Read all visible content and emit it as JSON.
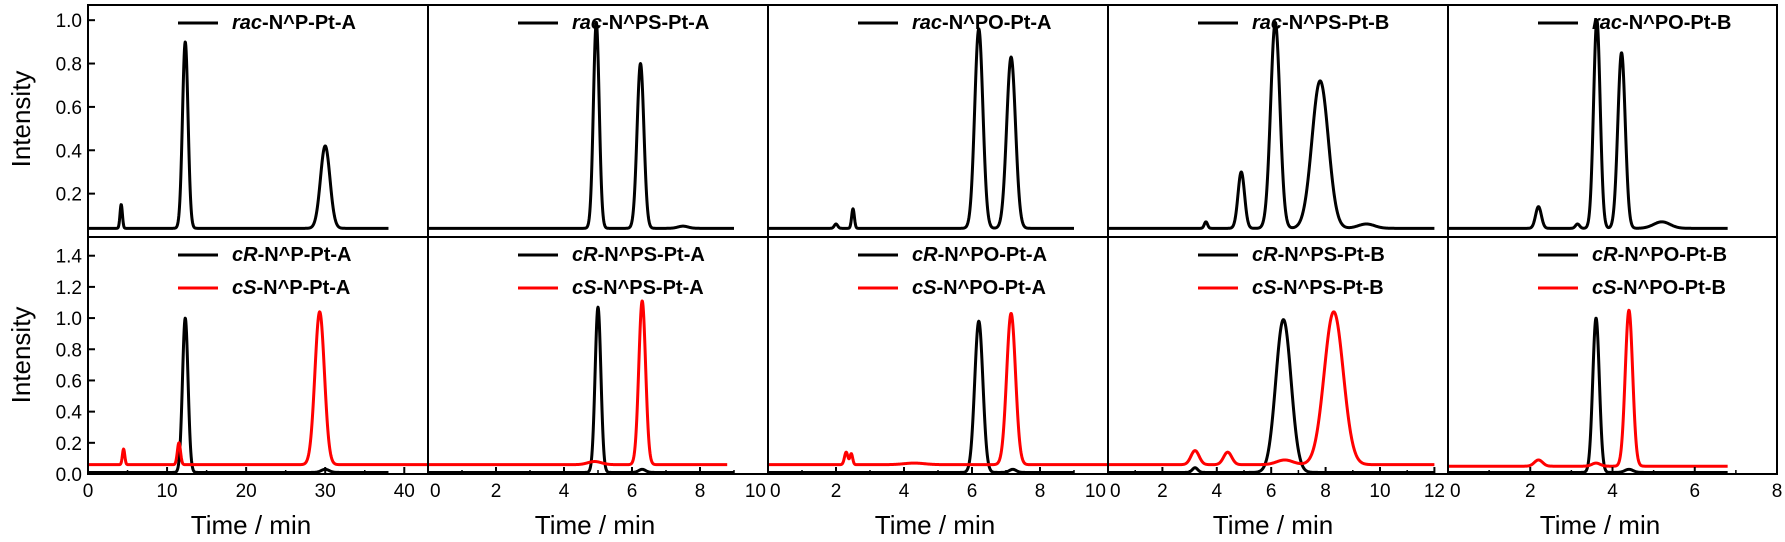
{
  "figure": {
    "ylabel": "Intensity",
    "xlabel": "Time / min"
  },
  "chart_data": [
    {
      "type": "line",
      "row": 0,
      "col": 0,
      "xlim": [
        0,
        43
      ],
      "ylim": [
        0,
        1.07
      ],
      "xticks": [],
      "yticks": [
        0.2,
        0.4,
        0.6,
        0.8,
        1.0
      ],
      "series": [
        {
          "name_prefix": "rac",
          "name_suffix": "-N^P-Pt-A",
          "color": "#000000",
          "x_end": 38,
          "baseline": 0.04,
          "peaks": [
            [
              4.2,
              0.11,
              0.15
            ],
            [
              12.3,
              0.86,
              0.35
            ],
            [
              30.0,
              0.38,
              0.6
            ]
          ]
        }
      ]
    },
    {
      "type": "line",
      "row": 0,
      "col": 1,
      "xlim": [
        0,
        10
      ],
      "ylim": [
        0,
        1.07
      ],
      "xticks": [],
      "yticks": [],
      "series": [
        {
          "name_prefix": "rac",
          "name_suffix": "-N^PS-Pt-A",
          "color": "#000000",
          "x_end": 9,
          "baseline": 0.04,
          "peaks": [
            [
              4.95,
              0.95,
              0.085
            ],
            [
              6.25,
              0.76,
              0.1
            ],
            [
              7.5,
              0.01,
              0.15
            ]
          ]
        }
      ]
    },
    {
      "type": "line",
      "row": 0,
      "col": 2,
      "xlim": [
        0,
        10
      ],
      "ylim": [
        0,
        1.07
      ],
      "xticks": [],
      "yticks": [],
      "series": [
        {
          "name_prefix": "rac",
          "name_suffix": "-N^PO-Pt-A",
          "color": "#000000",
          "x_end": 9,
          "baseline": 0.04,
          "peaks": [
            [
              2.0,
              0.02,
              0.05
            ],
            [
              2.5,
              0.09,
              0.04
            ],
            [
              6.2,
              0.92,
              0.12
            ],
            [
              7.15,
              0.79,
              0.13
            ]
          ]
        }
      ]
    },
    {
      "type": "line",
      "row": 0,
      "col": 3,
      "xlim": [
        0,
        12.5
      ],
      "ylim": [
        0,
        1.07
      ],
      "xticks": [],
      "yticks": [],
      "series": [
        {
          "name_prefix": "rac",
          "name_suffix": "-N^PS-Pt-B",
          "color": "#000000",
          "x_end": 12,
          "baseline": 0.04,
          "peaks": [
            [
              3.6,
              0.03,
              0.06
            ],
            [
              4.9,
              0.26,
              0.12
            ],
            [
              6.15,
              0.95,
              0.17
            ],
            [
              7.8,
              0.68,
              0.3
            ],
            [
              9.5,
              0.02,
              0.3
            ]
          ]
        }
      ]
    },
    {
      "type": "line",
      "row": 0,
      "col": 4,
      "xlim": [
        0,
        8
      ],
      "ylim": [
        0,
        1.07
      ],
      "xticks": [],
      "yticks": [],
      "series": [
        {
          "name_prefix": "rac",
          "name_suffix": "-N^PO-Pt-B",
          "color": "#000000",
          "x_end": 6.8,
          "baseline": 0.04,
          "peaks": [
            [
              2.2,
              0.1,
              0.07
            ],
            [
              3.15,
              0.02,
              0.05
            ],
            [
              3.62,
              0.96,
              0.08
            ],
            [
              4.22,
              0.81,
              0.09
            ],
            [
              5.2,
              0.03,
              0.2
            ]
          ]
        }
      ]
    },
    {
      "type": "line",
      "row": 1,
      "col": 0,
      "xlim": [
        0,
        43
      ],
      "ylim": [
        0,
        1.52
      ],
      "xticks": [
        0,
        10,
        20,
        30,
        40
      ],
      "yticks": [
        0.0,
        0.2,
        0.4,
        0.6,
        0.8,
        1.0,
        1.2,
        1.4
      ],
      "series": [
        {
          "name_prefix": "cR",
          "name_suffix": "-N^P-Pt-A",
          "color": "#000000",
          "x_end": 38,
          "baseline": 0.01,
          "peaks": [
            [
              12.3,
              0.99,
              0.35
            ],
            [
              30.0,
              0.02,
              0.5
            ]
          ]
        },
        {
          "name_prefix": "cS",
          "name_suffix": "-N^P-Pt-A",
          "color": "#ff0000",
          "x_end": 45,
          "baseline": 0.06,
          "peaks": [
            [
              4.5,
              0.1,
              0.15
            ],
            [
              11.5,
              0.14,
              0.2
            ],
            [
              29.3,
              0.98,
              0.6
            ]
          ]
        }
      ]
    },
    {
      "type": "line",
      "row": 1,
      "col": 1,
      "xlim": [
        0,
        10
      ],
      "ylim": [
        0,
        1.52
      ],
      "xticks": [
        0,
        2,
        4,
        6,
        8,
        10
      ],
      "yticks": [],
      "series": [
        {
          "name_prefix": "cR",
          "name_suffix": "-N^PS-Pt-A",
          "color": "#000000",
          "x_end": 9,
          "baseline": 0.01,
          "peaks": [
            [
              5.0,
              1.06,
              0.085
            ],
            [
              6.3,
              0.02,
              0.1
            ]
          ]
        },
        {
          "name_prefix": "cS",
          "name_suffix": "-N^PS-Pt-A",
          "color": "#ff0000",
          "x_end": 8.8,
          "baseline": 0.06,
          "peaks": [
            [
              6.3,
              1.05,
              0.1
            ],
            [
              4.9,
              0.02,
              0.2
            ]
          ]
        }
      ]
    },
    {
      "type": "line",
      "row": 1,
      "col": 2,
      "xlim": [
        0,
        10
      ],
      "ylim": [
        0,
        1.52
      ],
      "xticks": [
        0,
        2,
        4,
        6,
        8,
        10
      ],
      "yticks": [],
      "series": [
        {
          "name_prefix": "cR",
          "name_suffix": "-N^PO-Pt-A",
          "color": "#000000",
          "x_end": 9,
          "baseline": 0.01,
          "peaks": [
            [
              6.2,
              0.97,
              0.12
            ],
            [
              7.2,
              0.02,
              0.1
            ]
          ]
        },
        {
          "name_prefix": "cS",
          "name_suffix": "-N^PO-Pt-A",
          "color": "#ff0000",
          "x_end": 10,
          "baseline": 0.06,
          "peaks": [
            [
              2.3,
              0.08,
              0.05
            ],
            [
              2.45,
              0.07,
              0.04
            ],
            [
              7.15,
              0.97,
              0.13
            ],
            [
              4.3,
              0.01,
              0.3
            ]
          ]
        }
      ]
    },
    {
      "type": "line",
      "row": 1,
      "col": 3,
      "xlim": [
        0,
        12.5
      ],
      "ylim": [
        0,
        1.52
      ],
      "xticks": [
        0,
        2,
        4,
        6,
        8,
        10,
        12
      ],
      "yticks": [],
      "series": [
        {
          "name_prefix": "cR",
          "name_suffix": "-N^PS-Pt-B",
          "color": "#000000",
          "x_end": 12,
          "baseline": 0.01,
          "peaks": [
            [
              6.45,
              0.98,
              0.28
            ],
            [
              3.2,
              0.03,
              0.1
            ]
          ]
        },
        {
          "name_prefix": "cS",
          "name_suffix": "-N^PS-Pt-B",
          "color": "#ff0000",
          "x_end": 12,
          "baseline": 0.06,
          "peaks": [
            [
              3.2,
              0.09,
              0.15
            ],
            [
              4.4,
              0.08,
              0.15
            ],
            [
              8.3,
              0.98,
              0.35
            ],
            [
              6.5,
              0.03,
              0.3
            ]
          ]
        }
      ]
    },
    {
      "type": "line",
      "row": 1,
      "col": 4,
      "xlim": [
        0,
        8
      ],
      "ylim": [
        0,
        1.52
      ],
      "xticks": [
        0,
        2,
        4,
        6,
        8
      ],
      "yticks": [],
      "series": [
        {
          "name_prefix": "cR",
          "name_suffix": "-N^PO-Pt-B",
          "color": "#000000",
          "x_end": 6.8,
          "baseline": 0.01,
          "peaks": [
            [
              3.6,
              0.99,
              0.08
            ],
            [
              4.4,
              0.02,
              0.1
            ]
          ]
        },
        {
          "name_prefix": "cS",
          "name_suffix": "-N^PO-Pt-B",
          "color": "#ff0000",
          "x_end": 6.8,
          "baseline": 0.05,
          "peaks": [
            [
              2.2,
              0.04,
              0.1
            ],
            [
              4.4,
              1.0,
              0.09
            ],
            [
              3.6,
              0.02,
              0.1
            ]
          ]
        }
      ]
    }
  ]
}
